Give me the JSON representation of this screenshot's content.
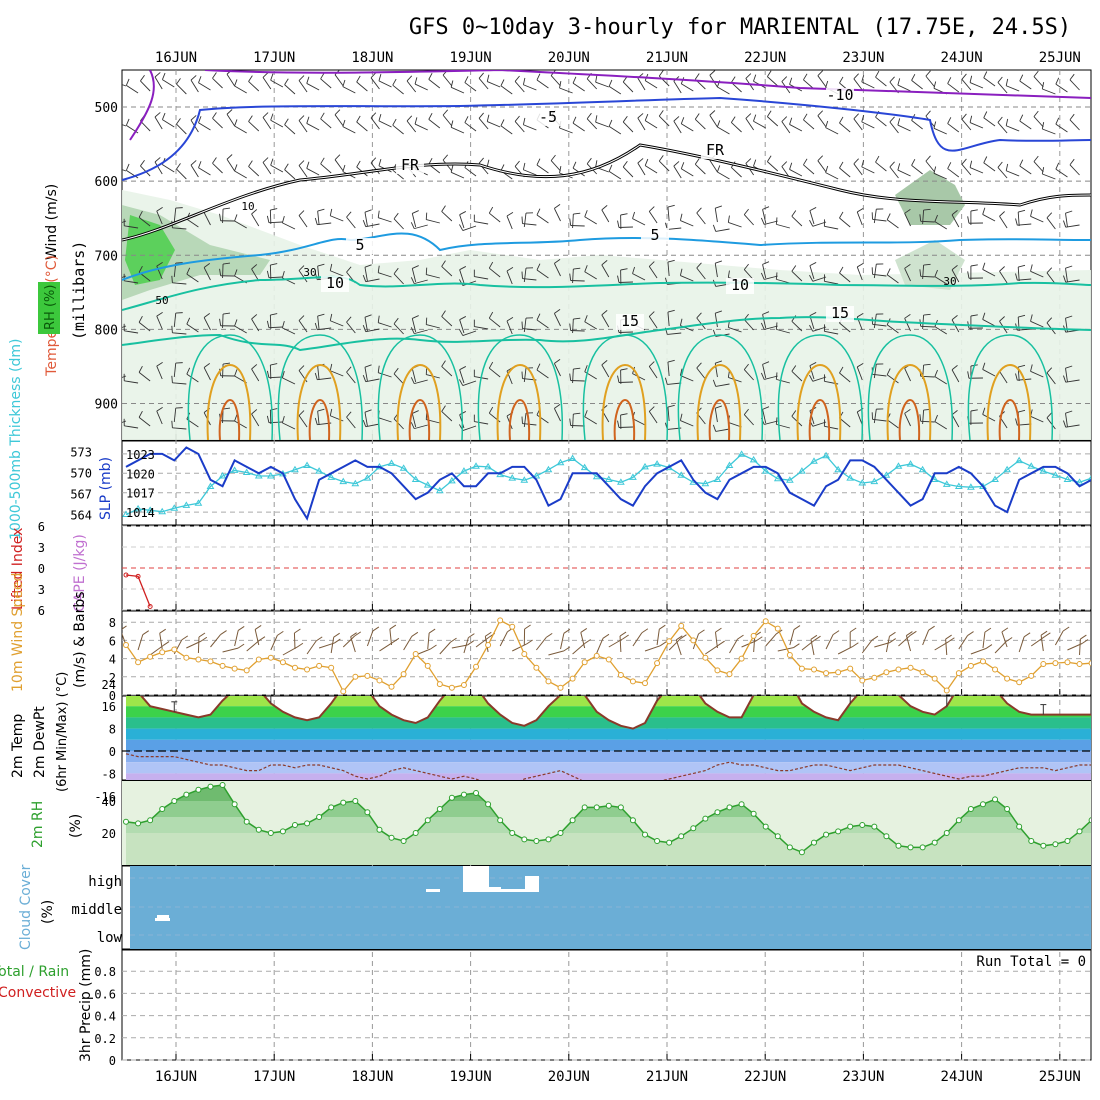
{
  "title": "GFS 0~10day 3-hourly for MARIENTAL (17.75E, 24.5S)",
  "day_labels": [
    "16JUN",
    "17JUN",
    "18JUN",
    "19JUN",
    "20JUN",
    "21JUN",
    "22JUN",
    "23JUN",
    "24JUN",
    "25JUN"
  ],
  "colors": {
    "contour_cold": "#8a1fbf",
    "contour_blue": "#2946d6",
    "contour_cyan": "#1e9be0",
    "contour_teal": "#18c0a0",
    "contour_orange": "#e0a020",
    "rh_shade": "#7cd87c",
    "slp": "#1a3cc8",
    "thickness": "#3ec8d8",
    "lifted_index": "#d02020",
    "wind_speed": "#e0a030",
    "barb": "#7a5a3a",
    "rh2m": "#2ea02e",
    "cloud": "#6baed6",
    "temp_line": "#8a3a2a"
  },
  "chart_data": [
    {
      "id": "upper_air",
      "type": "heatmap",
      "ylabel": "(millibars)",
      "y_ticks": [
        "500",
        "600",
        "700",
        "800",
        "900"
      ],
      "side_labels": [
        "Wind (m/s)",
        "Temperature (°C)",
        "RH (%)"
      ],
      "temperature_isotherms": [
        {
          "label": "-10",
          "pressure": [
            470,
            468,
            470,
            475,
            478,
            482,
            486,
            490
          ]
        },
        {
          "label": "-5",
          "pressure": [
            600,
            505,
            502,
            500,
            501,
            505,
            512,
            530
          ]
        },
        {
          "label": "FR",
          "pressure": [
            680,
            640,
            600,
            585,
            600,
            555,
            585,
            620
          ]
        },
        {
          "label": "5",
          "pressure": [
            710,
            690,
            670,
            665,
            670,
            665,
            668,
            680
          ]
        },
        {
          "label": "10",
          "pressure": [
            760,
            740,
            735,
            745,
            740,
            735,
            735,
            745
          ]
        },
        {
          "label": "15",
          "pressure": [
            830,
            800,
            790,
            800,
            785,
            775,
            775,
            790
          ]
        }
      ],
      "rh_contour_labels": [
        "10",
        "30",
        "50",
        "30",
        "30"
      ],
      "isotherm_labels": [
        "-10",
        "-5",
        "FR",
        "5",
        "10",
        "15"
      ]
    },
    {
      "id": "slp_thickness",
      "type": "line",
      "ylabel_left": "1000-500mb Thickness (dm)",
      "ylabel_right": "SLP (mb)",
      "thickness_ticks": [
        "573",
        "570",
        "567",
        "564"
      ],
      "slp_ticks": [
        "1023",
        "1020",
        "1017",
        "1014"
      ],
      "series": [
        {
          "name": "SLP (mb)",
          "values": [
            1021,
            1022,
            1023,
            1023,
            1022,
            1024,
            1023,
            1019,
            1018,
            1022,
            1021,
            1020,
            1021,
            1020,
            1016,
            1013,
            1019,
            1020,
            1021,
            1022,
            1021,
            1021,
            1020,
            1018,
            1016,
            1017,
            1019,
            1020,
            1018,
            1018,
            1020,
            1020,
            1021,
            1021,
            1019,
            1015,
            1016,
            1020,
            1020,
            1020,
            1018,
            1016,
            1015,
            1018,
            1020,
            1021,
            1022,
            1019,
            1017,
            1016,
            1019,
            1020,
            1021,
            1021,
            1020,
            1017,
            1016,
            1015,
            1018,
            1019,
            1022,
            1022,
            1021,
            1019,
            1017,
            1015,
            1016,
            1020,
            1020,
            1021,
            1020,
            1018,
            1015,
            1014,
            1019,
            1020,
            1021,
            1021,
            1020,
            1018,
            1019
          ]
        },
        {
          "name": "1000-500mb Thickness (dm)",
          "values": [
            564.0,
            564.8,
            564.6,
            564.4,
            564.9,
            565.3,
            565.6,
            568.0,
            569.5,
            570.3,
            570.0,
            569.5,
            569.5,
            569.8,
            570.4,
            571.0,
            570.2,
            569.3,
            568.7,
            568.4,
            569.2,
            570.8,
            571.3,
            570.6,
            569.0,
            568.2,
            567.4,
            568.8,
            570.2,
            570.9,
            570.8,
            569.7,
            569.2,
            568.9,
            569.5,
            570.4,
            571.4,
            572.0,
            570.7,
            569.4,
            569.0,
            568.6,
            569.3,
            570.8,
            571.2,
            570.7,
            569.6,
            568.6,
            568.4,
            569.0,
            571.0,
            572.6,
            571.8,
            570.2,
            569.1,
            568.9,
            570.2,
            571.6,
            572.4,
            570.4,
            569.2,
            568.5,
            568.7,
            569.6,
            570.9,
            571.2,
            570.4,
            569.0,
            568.3,
            568.0,
            567.9,
            568.0,
            569.0,
            570.4,
            571.7,
            570.9,
            570.2,
            569.6,
            569.0,
            568.6,
            569.2
          ]
        }
      ]
    },
    {
      "id": "cape_li",
      "type": "line",
      "ylabel_left": "Lifted Index",
      "ylabel_right": "CAPE (J/kg)",
      "y_ticks": [
        "-6",
        "-3",
        "0",
        "3",
        "6"
      ],
      "series": [
        {
          "name": "Lifted Index",
          "values": [
            1.0,
            1.2,
            5.5
          ]
        }
      ]
    },
    {
      "id": "wind10m",
      "type": "line",
      "ylabel_left": "10m Wind Speed",
      "ylabel_right": "(m/s) & Barbs",
      "y_ticks": [
        "8",
        "6",
        "4",
        "2",
        "0"
      ],
      "series": [
        {
          "name": "10m Wind Speed",
          "values": [
            5.5,
            3.6,
            4.2,
            4.7,
            5.0,
            4.1,
            3.9,
            3.7,
            3.2,
            2.9,
            2.7,
            3.9,
            4.1,
            3.6,
            3.0,
            2.8,
            3.2,
            3.0,
            0.4,
            2.0,
            2.1,
            1.6,
            0.9,
            2.3,
            4.5,
            3.2,
            1.2,
            0.8,
            1.1,
            3.1,
            5.5,
            8.2,
            7.5,
            4.5,
            3.0,
            1.5,
            0.8,
            1.8,
            3.6,
            4.3,
            3.9,
            2.2,
            1.5,
            1.3,
            3.5,
            5.9,
            7.6,
            6.0,
            4.1,
            2.7,
            2.3,
            4.0,
            6.5,
            8.1,
            7.3,
            4.4,
            2.9,
            2.8,
            2.4,
            2.5,
            2.9,
            1.6,
            1.9,
            2.5,
            2.8,
            3.0,
            2.5,
            1.8,
            0.5,
            2.4,
            3.2,
            3.7,
            2.8,
            1.8,
            1.4,
            2.1,
            3.4,
            3.5,
            3.6,
            3.4,
            3.5
          ]
        }
      ]
    },
    {
      "id": "temp2m",
      "type": "area",
      "ylabel_left": "2m Temp",
      "ylabel_mid": "2m DewPt",
      "ylabel_right": "(6hr Min/Max) (°C)",
      "y_ticks": [
        "24",
        "16",
        "8",
        "0",
        "-8",
        "-16"
      ],
      "series": [
        {
          "name": "2m Temp",
          "values": [
            21,
            21,
            16,
            15,
            14,
            13,
            12,
            13,
            18,
            22,
            24,
            22,
            17,
            14,
            12,
            11,
            12,
            17,
            23,
            24,
            22,
            16,
            13,
            11,
            10,
            12,
            18,
            23,
            25,
            23,
            17,
            13,
            10,
            9,
            11,
            16,
            20,
            22,
            20,
            14,
            11,
            9,
            8,
            10,
            18,
            23,
            25,
            23,
            17,
            14,
            12,
            12,
            20,
            25,
            27,
            25,
            17,
            14,
            12,
            11,
            17,
            22,
            25,
            25,
            20,
            16,
            14,
            13,
            16,
            23,
            26,
            26,
            22,
            17,
            14,
            13,
            13,
            13,
            13,
            13,
            13
          ]
        },
        {
          "name": "2m DewPt",
          "values": [
            -1,
            -2,
            -2,
            -2,
            -2,
            -3,
            -4,
            -5,
            -5,
            -6,
            -7,
            -7,
            -5,
            -5,
            -6,
            -5,
            -5,
            -6,
            -7,
            -9,
            -10,
            -9,
            -7,
            -6,
            -7,
            -8,
            -9,
            -10,
            -9,
            -10,
            -12,
            -13,
            -12,
            -10,
            -9,
            -8,
            -7,
            -9,
            -11,
            -15,
            -15,
            -14,
            -13,
            -12,
            -11,
            -10,
            -9,
            -8,
            -7,
            -5,
            -4,
            -5,
            -5,
            -6,
            -7,
            -7,
            -6,
            -5,
            -5,
            -6,
            -7,
            -6,
            -5,
            -5,
            -5,
            -6,
            -7,
            -8,
            -9,
            -10,
            -9,
            -9,
            -8,
            -7,
            -6,
            -6,
            -6,
            -7,
            -6,
            -5,
            -5
          ]
        }
      ]
    },
    {
      "id": "rh2m",
      "type": "area",
      "ylabel_left": "2m RH",
      "ylabel_right": "(%)",
      "y_ticks": [
        "40",
        "20"
      ],
      "series": [
        {
          "name": "2m RH",
          "values": [
            27,
            26,
            28,
            35,
            40,
            44,
            47,
            49,
            50,
            38,
            27,
            22,
            20,
            21,
            25,
            26,
            30,
            36,
            39,
            40,
            33,
            22,
            17,
            15,
            20,
            28,
            35,
            42,
            44,
            45,
            38,
            28,
            20,
            16,
            15,
            16,
            20,
            28,
            36,
            36,
            37,
            36,
            28,
            19,
            15,
            14,
            18,
            23,
            29,
            33,
            36,
            38,
            32,
            24,
            18,
            11,
            8,
            14,
            19,
            21,
            24,
            25,
            24,
            18,
            12,
            11,
            11,
            14,
            20,
            28,
            35,
            38,
            41,
            35,
            24,
            15,
            12,
            13,
            15,
            21,
            28
          ]
        }
      ]
    },
    {
      "id": "cloud",
      "type": "bar",
      "ylabel_left": "Cloud Cover",
      "ylabel_right": "(%)",
      "levels": [
        "high",
        "middle",
        "low"
      ]
    },
    {
      "id": "precip",
      "type": "bar",
      "ylabel_left": "Total / Rain",
      "ylabel_mid": "Convective",
      "ylabel_right": "3hr Precip (mm)",
      "y_ticks": [
        "0.8",
        "0.6",
        "0.4",
        "0.2",
        "0"
      ],
      "run_total": "Run Total = 0",
      "values": []
    }
  ]
}
